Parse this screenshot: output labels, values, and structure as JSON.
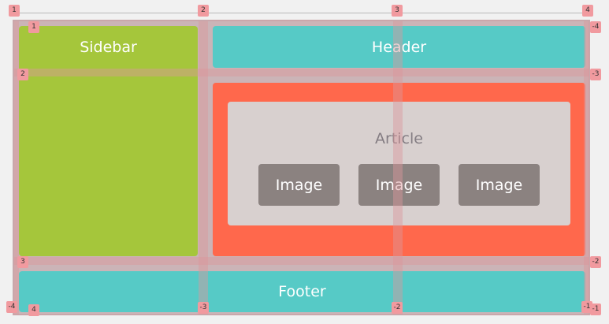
{
  "areas": {
    "sidebar": "Sidebar",
    "header": "Header",
    "footer": "Footer",
    "article_title": "Article",
    "images": [
      "Image",
      "Image",
      "Image"
    ]
  },
  "grid_badges": {
    "top": [
      "1",
      "2",
      "3",
      "4"
    ],
    "bottom": [
      "-4",
      "-3",
      "-2",
      "-1"
    ],
    "left": [
      "1",
      "2",
      "3",
      "4"
    ],
    "left_bottom": "-4",
    "right": [
      "-4",
      "-3",
      "-2",
      "-1"
    ],
    "inner_top_left": "1"
  },
  "colors": {
    "sidebar": "#a5c63b",
    "header": "#56cac6",
    "content": "#ff684c",
    "article": "#d8d0cf",
    "image": "#8b8280",
    "grid_badge": "#f19a9f"
  }
}
